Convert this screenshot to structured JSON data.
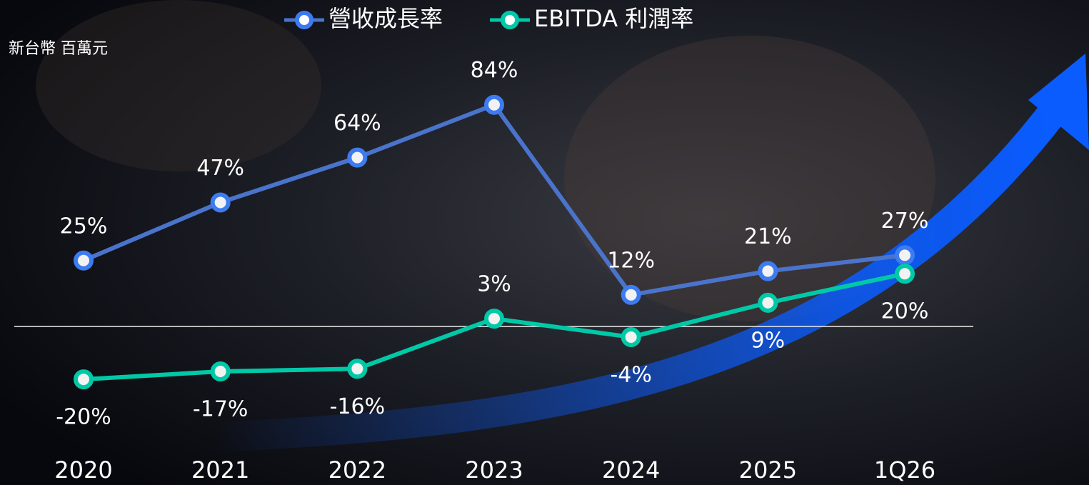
{
  "chart_data": {
    "type": "line",
    "unit_label": "新台幣 百萬元",
    "categories": [
      "2020",
      "2021",
      "2022",
      "2023",
      "2024",
      "2025",
      "1Q26"
    ],
    "series": [
      {
        "name": "營收成長率",
        "color": "#4a74cc",
        "marker_color": "#3d7bf0",
        "values": [
          25,
          47,
          64,
          84,
          12,
          21,
          27
        ],
        "value_labels": [
          "25%",
          "47%",
          "64%",
          "84%",
          "12%",
          "21%",
          "27%"
        ]
      },
      {
        "name": "EBITDA 利潤率",
        "color": "#00c9a7",
        "marker_color": "#00c9a7",
        "values": [
          -20,
          -17,
          -16,
          3,
          -4,
          9,
          20
        ],
        "value_labels": [
          "-20%",
          "-17%",
          "-16%",
          "3%",
          "-4%",
          "9%",
          "20%"
        ]
      }
    ],
    "ylim": [
      -40,
      110
    ],
    "grid": false
  }
}
